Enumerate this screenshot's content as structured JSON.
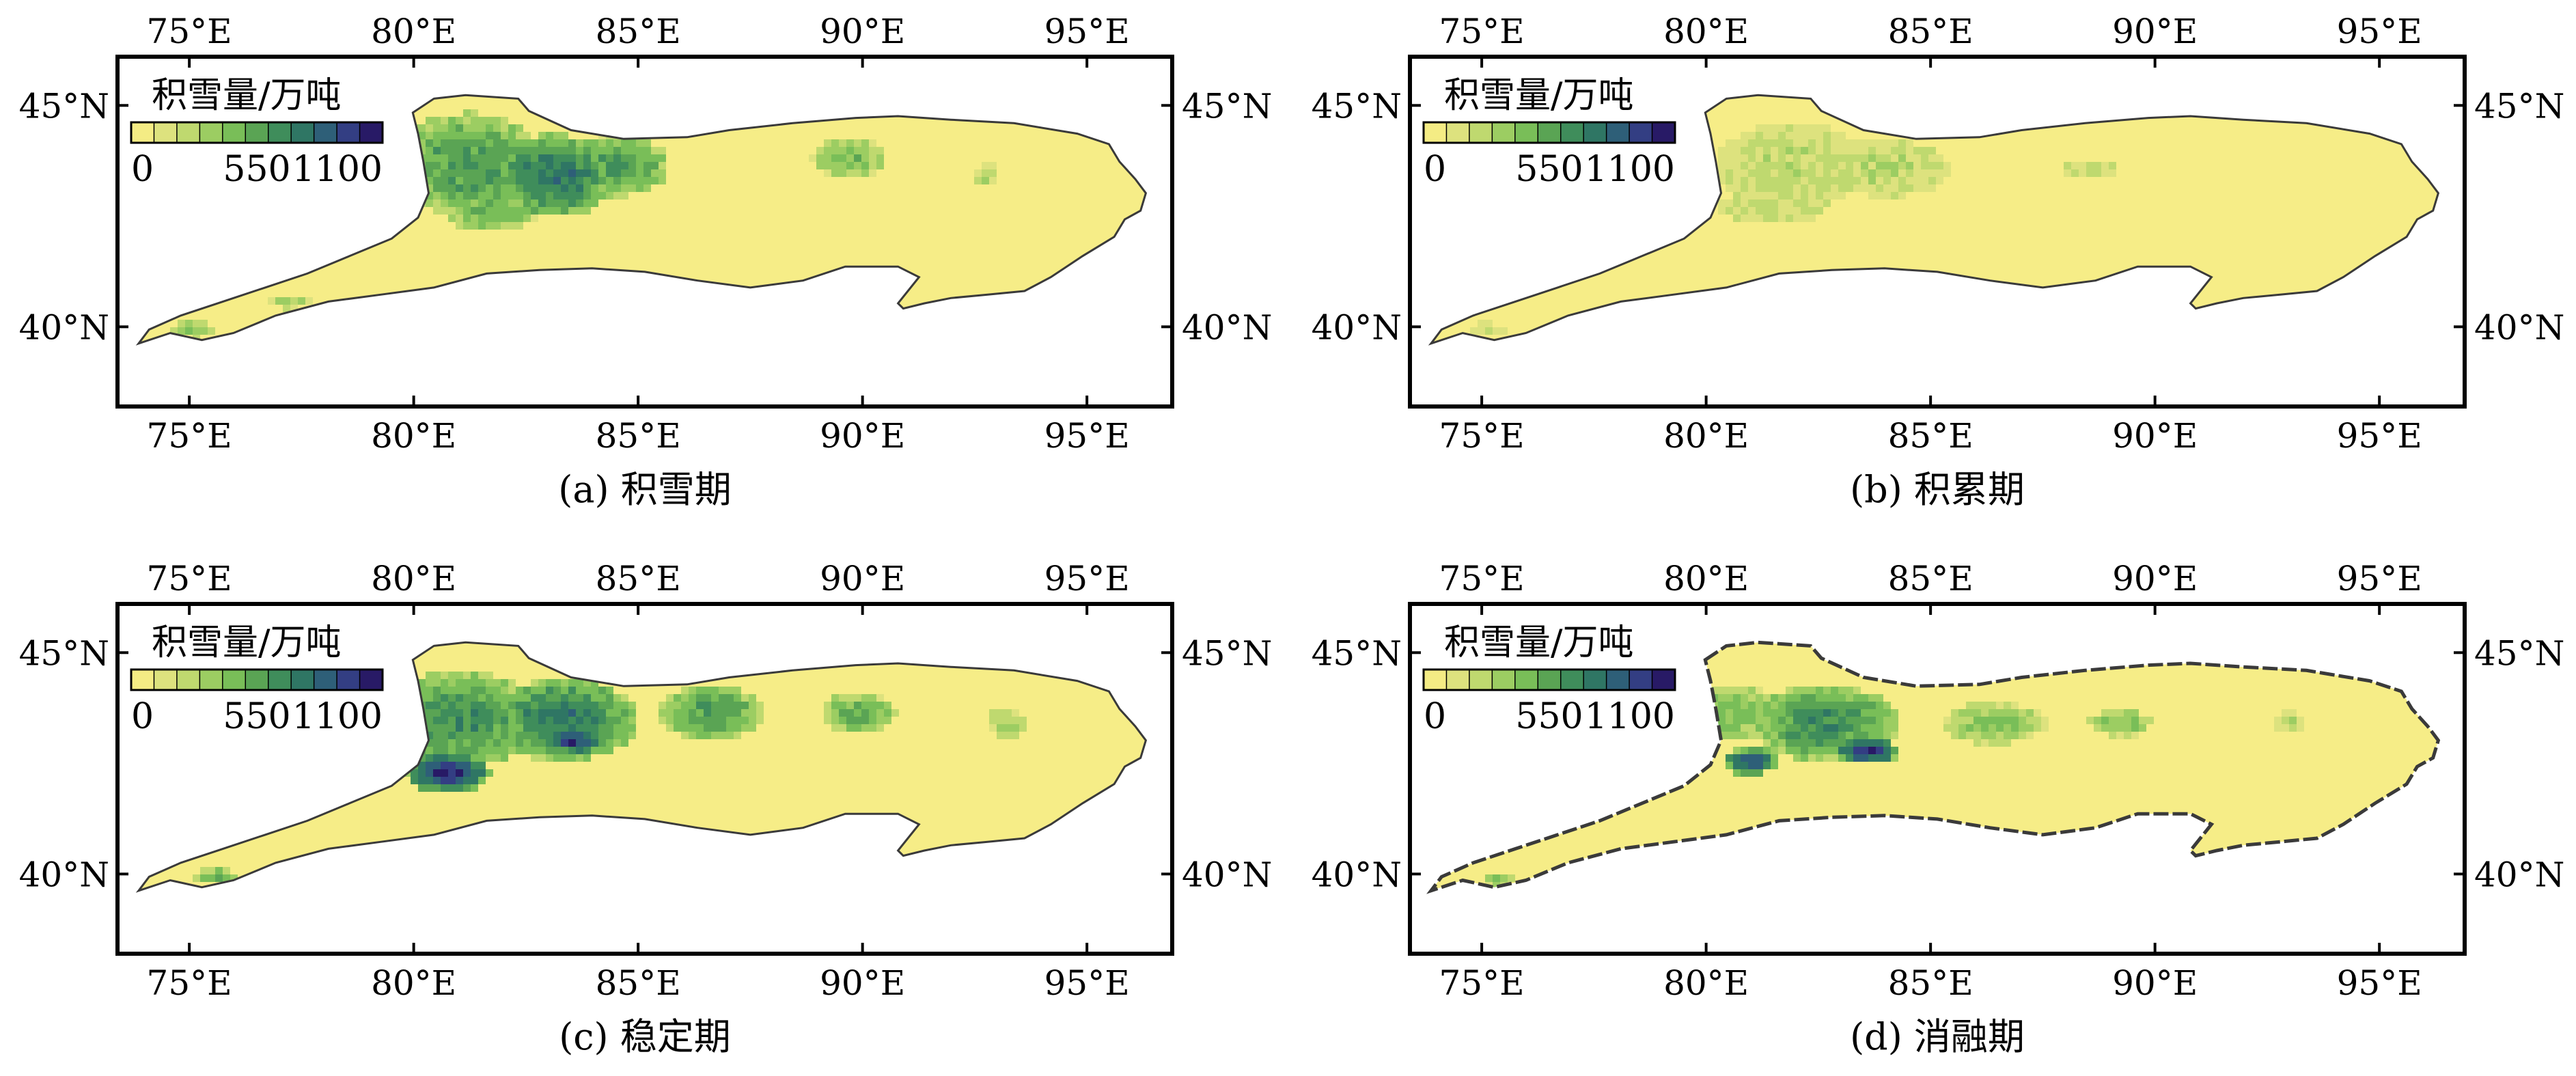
{
  "figure": {
    "lon_ticks": [
      {
        "value": 75,
        "label": "75°E"
      },
      {
        "value": 80,
        "label": "80°E"
      },
      {
        "value": 85,
        "label": "85°E"
      },
      {
        "value": 90,
        "label": "90°E"
      },
      {
        "value": 95,
        "label": "95°E"
      }
    ],
    "lat_ticks": [
      {
        "value": 45,
        "label": "45°N"
      },
      {
        "value": 40,
        "label": "40°N"
      }
    ],
    "legend": {
      "title": "积雪量/万吨",
      "labels": [
        "0",
        "550",
        "1100"
      ],
      "min": 0,
      "max": 1100,
      "colors": [
        "#f4ec84",
        "#dde27e",
        "#bfd96f",
        "#9ccd62",
        "#79be58",
        "#5aa454",
        "#3f8d5b",
        "#2f7664",
        "#2e5f78",
        "#333e83",
        "#281a66"
      ]
    },
    "colors": {
      "background_fill": "#f6ed87",
      "boundary": "#3a3a3a",
      "frame": "#000000"
    }
  },
  "panels": [
    {
      "caption": "(a) 积雪期"
    },
    {
      "caption": "(b) 积累期"
    },
    {
      "caption": "(c) 稳定期"
    },
    {
      "caption": "(d) 消融期"
    }
  ]
}
